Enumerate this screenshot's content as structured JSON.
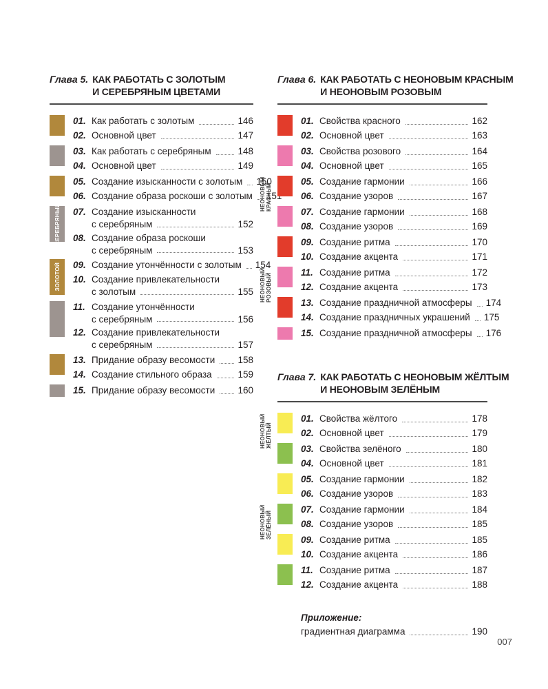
{
  "page_number": "007",
  "colors": {
    "gold": "#b1883c",
    "silver": "#9d9490",
    "red": "#e23c2b",
    "pink": "#ed7aae",
    "yellow": "#f8ec54",
    "green": "#8cc04f",
    "rule": "#4a4a4a",
    "text": "#231f20"
  },
  "appendix": {
    "label": "Приложение:",
    "entry": "градиентная диаграмма",
    "page": "190"
  },
  "chapters": [
    {
      "label": "Глава 5.",
      "title_lines": [
        "КАК РАБОТАТЬ С ЗОЛОТЫМ",
        "И СЕРЕБРЯНЫМ ЦВЕТАМИ"
      ],
      "groups": [
        {
          "color": "gold",
          "items": [
            {
              "num": "01.",
              "lines": [
                "Как работать с золотым"
              ],
              "page": "146"
            },
            {
              "num": "02.",
              "lines": [
                "Основной цвет"
              ],
              "page": "147"
            }
          ]
        },
        {
          "color": "silver",
          "items": [
            {
              "num": "03.",
              "lines": [
                "Как работать с серебряным"
              ],
              "page": "148"
            },
            {
              "num": "04.",
              "lines": [
                "Основной цвет"
              ],
              "page": "149"
            }
          ]
        },
        {
          "color": "gold",
          "items": [
            {
              "num": "05.",
              "lines": [
                "Создание изысканности с золотым"
              ],
              "page": "150"
            },
            {
              "num": "06.",
              "lines": [
                "Создание образа роскоши с золотым"
              ],
              "page": "151"
            }
          ]
        },
        {
          "color": "silver",
          "label_inside": "СЕРЕБРЯНЫЙ",
          "items": [
            {
              "num": "07.",
              "lines": [
                "Создание изысканности",
                "с серебряным"
              ],
              "page": "152"
            },
            {
              "num": "08.",
              "lines": [
                "Создание образа роскоши",
                "с серебряным"
              ],
              "page": "153"
            }
          ]
        },
        {
          "color": "gold",
          "label_inside": "ЗОЛОТОЙ",
          "items": [
            {
              "num": "09.",
              "lines": [
                "Создание утончённости с золотым"
              ],
              "page": "154"
            },
            {
              "num": "10.",
              "lines": [
                "Создание привлекательности",
                "с золотым"
              ],
              "page": "155"
            }
          ]
        },
        {
          "color": "silver",
          "items": [
            {
              "num": "11.",
              "lines": [
                "Создание утончённости",
                "с серебряным"
              ],
              "page": "156"
            },
            {
              "num": "12.",
              "lines": [
                "Создание привлекательности",
                "с серебряным"
              ],
              "page": "157"
            }
          ]
        },
        {
          "color": "gold",
          "items": [
            {
              "num": "13.",
              "lines": [
                "Придание образу весомости"
              ],
              "page": "158"
            },
            {
              "num": "14.",
              "lines": [
                "Создание стильного образа"
              ],
              "page": "159"
            }
          ]
        },
        {
          "color": "silver",
          "items": [
            {
              "num": "15.",
              "lines": [
                "Придание образу весомости"
              ],
              "page": "160"
            }
          ]
        }
      ]
    },
    {
      "label": "Глава 6.",
      "title_lines": [
        "КАК РАБОТАТЬ С НЕОНОВЫМ КРАСНЫМ",
        "И НЕОНОВЫМ РОЗОВЫМ"
      ],
      "groups": [
        {
          "color": "red",
          "items": [
            {
              "num": "01.",
              "lines": [
                "Свойства красного"
              ],
              "page": "162"
            },
            {
              "num": "02.",
              "lines": [
                "Основной цвет"
              ],
              "page": "163"
            }
          ]
        },
        {
          "color": "pink",
          "items": [
            {
              "num": "03.",
              "lines": [
                "Свойства розового"
              ],
              "page": "164"
            },
            {
              "num": "04.",
              "lines": [
                "Основной цвет"
              ],
              "page": "165"
            }
          ]
        },
        {
          "color": "red",
          "label_outside": [
            "НЕОНОВЫЙ",
            "КРАСНЫЙ"
          ],
          "items": [
            {
              "num": "05.",
              "lines": [
                "Создание гармонии"
              ],
              "page": "166"
            },
            {
              "num": "06.",
              "lines": [
                "Создание узоров"
              ],
              "page": "167"
            }
          ]
        },
        {
          "color": "pink",
          "items": [
            {
              "num": "07.",
              "lines": [
                "Создание гармонии"
              ],
              "page": "168"
            },
            {
              "num": "08.",
              "lines": [
                "Создание узоров"
              ],
              "page": "169"
            }
          ]
        },
        {
          "color": "red",
          "items": [
            {
              "num": "09.",
              "lines": [
                "Создание ритма"
              ],
              "page": "170"
            },
            {
              "num": "10.",
              "lines": [
                "Создание акцента"
              ],
              "page": "171"
            }
          ]
        },
        {
          "color": "pink",
          "label_outside": [
            "НЕОНОВЫЙ",
            "РОЗОВЫЙ"
          ],
          "items": [
            {
              "num": "11.",
              "lines": [
                "Создание ритма"
              ],
              "page": "172"
            },
            {
              "num": "12.",
              "lines": [
                "Создание акцента"
              ],
              "page": "173"
            }
          ]
        },
        {
          "color": "red",
          "items": [
            {
              "num": "13.",
              "lines": [
                "Создание праздничной атмосферы"
              ],
              "page": "174"
            },
            {
              "num": "14.",
              "lines": [
                "Создание праздничных украшений"
              ],
              "page": "175"
            }
          ]
        },
        {
          "color": "pink",
          "items": [
            {
              "num": "15.",
              "lines": [
                "Создание праздничной атмосферы"
              ],
              "page": "176"
            }
          ]
        }
      ]
    },
    {
      "label": "Глава 7.",
      "title_lines": [
        "КАК РАБОТАТЬ С НЕОНОВЫМ ЖЁЛТЫМ",
        "И НЕОНОВЫМ ЗЕЛЁНЫМ"
      ],
      "groups": [
        {
          "color": "yellow",
          "label_outside": [
            "НЕОНОВЫЙ",
            "ЖЁЛТЫЙ"
          ],
          "items": [
            {
              "num": "01.",
              "lines": [
                "Свойства жёлтого"
              ],
              "page": "178"
            },
            {
              "num": "02.",
              "lines": [
                "Основной цвет"
              ],
              "page": "179"
            }
          ]
        },
        {
          "color": "green",
          "items": [
            {
              "num": "03.",
              "lines": [
                "Свойства зелёного"
              ],
              "page": "180"
            },
            {
              "num": "04.",
              "lines": [
                "Основной цвет"
              ],
              "page": "181"
            }
          ]
        },
        {
          "color": "yellow",
          "items": [
            {
              "num": "05.",
              "lines": [
                "Создание гармонии"
              ],
              "page": "182"
            },
            {
              "num": "06.",
              "lines": [
                "Создание узоров"
              ],
              "page": "183"
            }
          ]
        },
        {
          "color": "green",
          "label_outside": [
            "НЕОНОВЫЙ",
            "ЗЕЛЁНЫЙ"
          ],
          "items": [
            {
              "num": "07.",
              "lines": [
                "Создание гармонии"
              ],
              "page": "184"
            },
            {
              "num": "08.",
              "lines": [
                "Создание узоров"
              ],
              "page": "185"
            }
          ]
        },
        {
          "color": "yellow",
          "items": [
            {
              "num": "09.",
              "lines": [
                "Создание ритма"
              ],
              "page": "185"
            },
            {
              "num": "10.",
              "lines": [
                "Создание акцента"
              ],
              "page": "186"
            }
          ]
        },
        {
          "color": "green",
          "items": [
            {
              "num": "11.",
              "lines": [
                "Создание ритма"
              ],
              "page": "187"
            },
            {
              "num": "12.",
              "lines": [
                "Создание акцента"
              ],
              "page": "188"
            }
          ]
        }
      ]
    }
  ]
}
